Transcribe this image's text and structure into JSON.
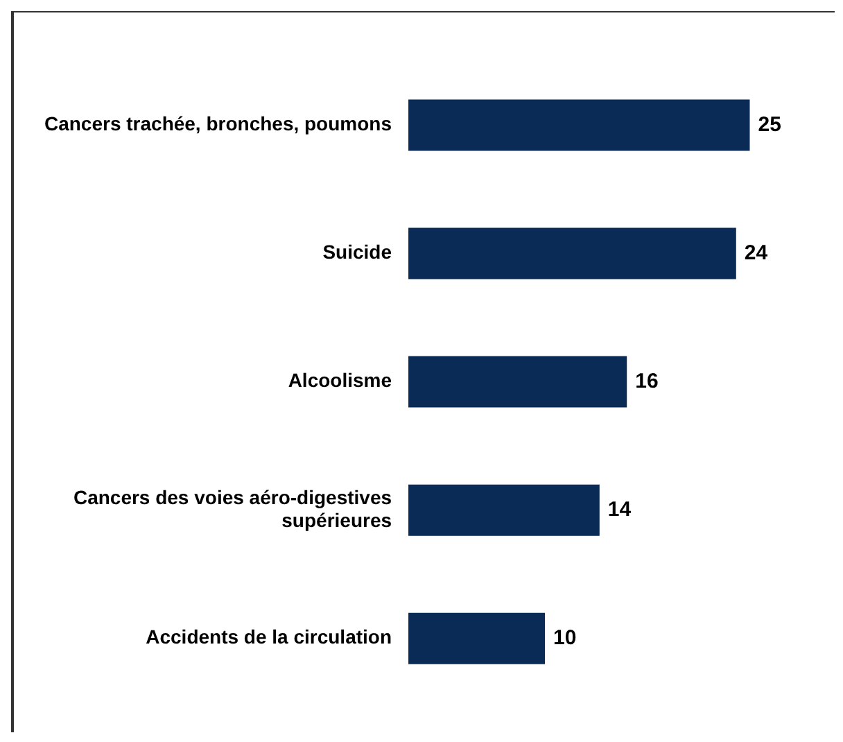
{
  "chart_data": {
    "type": "bar",
    "orientation": "horizontal",
    "categories": [
      "Cancers trachée, bronches, poumons",
      "Suicide",
      "Alcoolisme",
      "Cancers des voies aéro-digestives supérieures",
      "Accidents de la circulation"
    ],
    "values": [
      25,
      24,
      16,
      14,
      10
    ],
    "color": "#0b2b57",
    "data_labels": true
  }
}
